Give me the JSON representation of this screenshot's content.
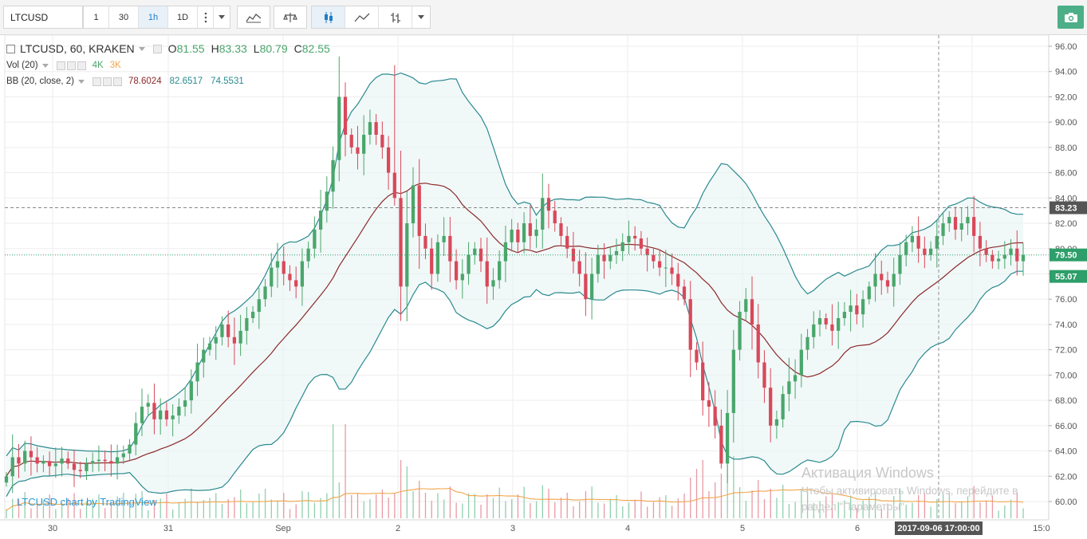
{
  "toolbar": {
    "symbol": "LTCUSD",
    "intervals": [
      "1",
      "30",
      "1h",
      "1D"
    ],
    "active_interval": "1h",
    "icons": [
      "more-menu-icon",
      "dropdown-caret-icon",
      "indicators-icon",
      "compare-icon",
      "candles-icon",
      "line-chart-icon",
      "bars-icon",
      "dropdown-caret-icon",
      "camera-icon"
    ]
  },
  "legend": {
    "main_title": "LTCUSD, 60, KRAKEN",
    "o_label": "O",
    "o_value": "81.55",
    "h_label": "H",
    "h_value": "83.33",
    "l_label": "L",
    "l_value": "80.79",
    "c_label": "C",
    "c_value": "82.55",
    "vol_label": "Vol (20)",
    "vol_value1": "4K",
    "vol_value2": "3K",
    "bb_label": "BB (20, close, 2)",
    "bb_mid": "78.6024",
    "bb_upper": "82.6517",
    "bb_lower": "74.5531"
  },
  "price_axis": {
    "ticks": [
      "96.00",
      "94.00",
      "92.00",
      "90.00",
      "88.00",
      "86.00",
      "84.00",
      "82.00",
      "80.00",
      "78.00",
      "76.00",
      "74.00",
      "72.00",
      "70.00",
      "68.00",
      "66.00",
      "64.00",
      "62.00",
      "60.00"
    ],
    "marker_high": "83.23",
    "marker_last": "79.50",
    "marker_last2": "55.07"
  },
  "time_axis": {
    "ticks": [
      "30",
      "31",
      "Sep",
      "2",
      "3",
      "4",
      "5",
      "6",
      "15:0"
    ],
    "crosshair_label": "2017-09-06 17:00:00"
  },
  "credit": "LTCUSD chart by TradingView",
  "watermark": {
    "line1": "Активация Windows",
    "line2": "Чтобы активировать Windows, перейдите в",
    "line3": "раздел \"Параметры\"."
  },
  "colors": {
    "up": "#4aa66b",
    "down": "#d9485a",
    "bb_band": "#2a8a8f",
    "bb_mid": "#8b2a2a",
    "vol_ma": "#f2a54a",
    "last_price": "#2e9e6a"
  },
  "chart_data": {
    "type": "candlestick",
    "symbol": "LTCUSD",
    "interval": "60",
    "exchange": "KRAKEN",
    "ylim": [
      59,
      97
    ],
    "x_labels": [
      "30",
      "31",
      "Sep",
      "2",
      "3",
      "4",
      "5",
      "6"
    ],
    "close": [
      62.0,
      63.5,
      63.0,
      64.0,
      63.5,
      63.0,
      63.2,
      62.8,
      63.0,
      63.4,
      63.0,
      62.5,
      62.4,
      63.0,
      63.2,
      63.3,
      63.2,
      63.0,
      63.5,
      63.8,
      64.5,
      66.2,
      67.5,
      67.8,
      66.5,
      67.2,
      66.5,
      66.8,
      67.5,
      68.0,
      69.5,
      71.0,
      72.0,
      72.5,
      73.0,
      74.0,
      73.0,
      72.5,
      73.5,
      74.5,
      75.0,
      76.0,
      77.0,
      78.5,
      79.0,
      78.0,
      77.5,
      77.0,
      79.0,
      80.0,
      81.5,
      83.0,
      84.5,
      87.0,
      92.0,
      89.0,
      88.0,
      87.5,
      89.0,
      90.0,
      89.0,
      88.0,
      86.0,
      84.0,
      77.0,
      82.0,
      85.0,
      81.0,
      80.0,
      78.0,
      80.5,
      81.0,
      79.0,
      77.5,
      78.0,
      79.5,
      80.0,
      79.0,
      77.0,
      77.5,
      79.0,
      80.5,
      81.5,
      80.5,
      82.0,
      81.0,
      81.5,
      84.0,
      83.0,
      82.0,
      81.0,
      80.0,
      79.0,
      78.0,
      76.0,
      78.0,
      79.5,
      79.0,
      79.5,
      79.8,
      80.5,
      81.0,
      80.8,
      80.0,
      79.5,
      79.0,
      78.5,
      78.5,
      78.0,
      77.0,
      76.0,
      72.0,
      71.0,
      68.0,
      67.5,
      66.0,
      63.0,
      67.0,
      72.0,
      75.0,
      76.0,
      74.0,
      71.0,
      69.0,
      66.0,
      66.5,
      68.5,
      69.5,
      70.0,
      72.0,
      73.0,
      74.0,
      74.5,
      74.0,
      73.5,
      74.5,
      75.0,
      75.5,
      74.8,
      76.0,
      77.0,
      78.0,
      77.5,
      77.0,
      78.0,
      79.5,
      80.5,
      81.0,
      80.0,
      79.5,
      80.0,
      81.0,
      82.0,
      82.5,
      81.5,
      82.0,
      82.5,
      81.0,
      80.0,
      79.5,
      79.0,
      79.2,
      79.5,
      80.0,
      79.0,
      79.5
    ],
    "bollinger": {
      "period": 20,
      "source": "close",
      "stddev": 2,
      "mid": 78.6024,
      "upper": 82.6517,
      "lower": 74.5531
    },
    "volume_ma_period": 20,
    "last_price": 79.5,
    "high_marker": 83.23,
    "last_ohlc": {
      "open": 81.55,
      "high": 83.33,
      "low": 80.79,
      "close": 82.55
    }
  }
}
